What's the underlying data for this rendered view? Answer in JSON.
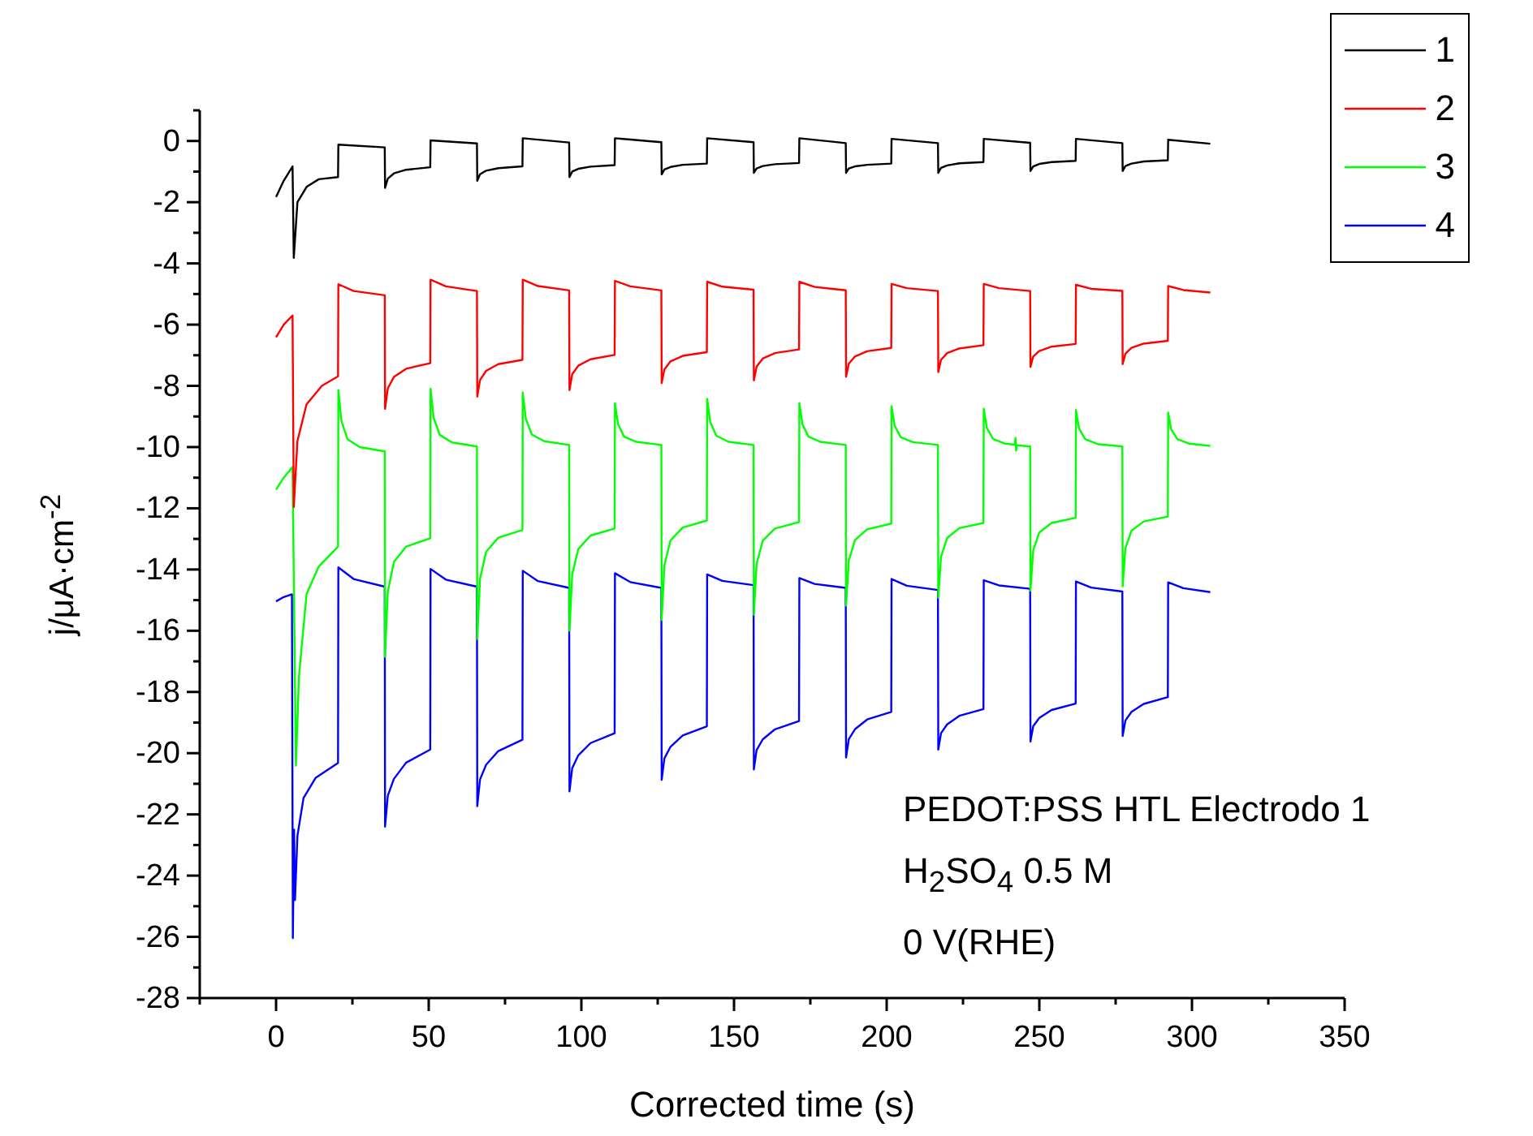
{
  "chart_data": {
    "type": "line",
    "xlabel": "Corrected time (s)",
    "ylabel": "j/μA·cm$^{-2}$",
    "xlim": [
      -25,
      350
    ],
    "ylim": [
      -28,
      1
    ],
    "xticks": [
      {
        "value": -25,
        "label": null
      },
      0,
      {
        "value": 25,
        "label": null
      },
      50,
      {
        "value": 75,
        "label": null
      },
      100,
      {
        "value": 125,
        "label": null
      },
      150,
      {
        "value": 175,
        "label": null
      },
      200,
      {
        "value": 225,
        "label": null
      },
      250,
      {
        "value": 275,
        "label": null
      },
      300,
      {
        "value": 325,
        "label": null
      },
      350
    ],
    "yticks": [
      {
        "value": 1,
        "label": null
      },
      0,
      {
        "value": -1,
        "label": null
      },
      -2,
      {
        "value": -3,
        "label": null
      },
      -4,
      {
        "value": -5,
        "label": null
      },
      -6,
      {
        "value": -7,
        "label": null
      },
      -8,
      {
        "value": -9,
        "label": null
      },
      -10,
      {
        "value": -11,
        "label": null
      },
      -12,
      {
        "value": -13,
        "label": null
      },
      -14,
      {
        "value": -15,
        "label": null
      },
      -16,
      {
        "value": -17,
        "label": null
      },
      -18,
      {
        "value": -19,
        "label": null
      },
      -20,
      {
        "value": -21,
        "label": null
      },
      -22,
      {
        "value": -23,
        "label": null
      },
      -24,
      {
        "value": -25,
        "label": null
      },
      -26,
      {
        "value": -27,
        "label": null
      },
      -28
    ],
    "grid": false,
    "legend": "top right",
    "marker": "none",
    "line_style": "solid",
    "annotations": [
      "PEDOT:PSS HTL Electrodo 1",
      "H$_{2}$SO$_{4}$ 0.5 M",
      "0 V(RHE)"
    ],
    "series": [
      {
        "name": "1",
        "color": "#000000",
        "x": [
          0,
          2.5,
          5.4,
          5.8,
          7,
          10,
          14,
          20.3,
          20.4,
          35.6,
          35.7,
          36.6,
          38.6,
          42.6,
          50.5,
          50.6,
          65.8,
          65.9,
          66.8,
          68.8,
          72.8,
          80.7,
          80.8,
          96.0,
          96.1,
          97,
          99,
          103,
          110.9,
          111.0,
          126.2,
          126.3,
          127.2,
          129.2,
          133.2,
          141.1,
          141.2,
          156.4,
          156.5,
          157.4,
          159.4,
          163.4,
          171.3,
          171.4,
          186.6,
          186.7,
          187.6,
          189.6,
          193.6,
          201.5,
          201.6,
          216.8,
          216.9,
          217.8,
          219.8,
          223.8,
          231.7,
          231.8,
          247.0,
          247.1,
          248,
          250,
          254,
          261.9,
          262.0,
          277.2,
          277.3,
          278.2,
          280.2,
          284.2,
          292.1,
          292.2,
          306
        ],
        "values": [
          -1.83,
          -1.3,
          -0.83,
          -3.82,
          -2.0,
          -1.5,
          -1.25,
          -1.18,
          -0.12,
          -0.21,
          -1.53,
          -1.23,
          -1.06,
          -0.94,
          -0.86,
          0.02,
          -0.08,
          -1.3,
          -1.09,
          -0.97,
          -0.89,
          -0.83,
          0.09,
          -0.05,
          -1.18,
          -1.0,
          -0.91,
          -0.84,
          -0.79,
          0.09,
          -0.04,
          -1.09,
          -0.93,
          -0.85,
          -0.78,
          -0.74,
          0.09,
          -0.04,
          -1.04,
          -0.9,
          -0.82,
          -0.76,
          -0.72,
          0.09,
          -0.07,
          -1.04,
          -0.9,
          -0.83,
          -0.78,
          -0.74,
          0.07,
          -0.07,
          -1.04,
          -0.88,
          -0.8,
          -0.73,
          -0.69,
          0.07,
          -0.06,
          -0.98,
          -0.83,
          -0.75,
          -0.69,
          -0.65,
          0.07,
          -0.07,
          -0.98,
          -0.82,
          -0.74,
          -0.67,
          -0.63,
          0.04,
          -0.09
        ]
      },
      {
        "name": "2",
        "color": "#ff0000",
        "x": [
          0,
          2.5,
          5.4,
          5.8,
          7,
          10,
          15,
          20.3,
          20.4,
          25.4,
          35.6,
          35.7,
          36.6,
          38.6,
          42.6,
          50.5,
          50.6,
          55.6,
          65.8,
          65.9,
          66.8,
          68.8,
          72.8,
          80.7,
          80.8,
          85.8,
          96.0,
          96.1,
          97,
          99,
          103,
          110.9,
          111.0,
          116,
          126.2,
          126.3,
          127.2,
          129.2,
          133.2,
          141.1,
          141.2,
          146.2,
          156.4,
          156.5,
          157.4,
          159.4,
          163.4,
          171.3,
          171.4,
          176.4,
          186.6,
          186.7,
          187.6,
          189.6,
          193.6,
          201.5,
          201.6,
          206.6,
          216.8,
          216.9,
          217.8,
          219.8,
          223.8,
          231.7,
          231.8,
          236.8,
          247.0,
          247.1,
          248,
          250,
          254,
          261.9,
          262.0,
          267,
          277.2,
          277.3,
          278.2,
          280.2,
          284.2,
          292.1,
          292.2,
          297.2,
          306
        ],
        "values": [
          -6.41,
          -6.0,
          -5.7,
          -11.96,
          -9.8,
          -8.6,
          -8.0,
          -7.69,
          -4.68,
          -4.9,
          -5.04,
          -8.75,
          -8.08,
          -7.71,
          -7.44,
          -7.26,
          -4.53,
          -4.75,
          -4.9,
          -8.35,
          -7.81,
          -7.51,
          -7.29,
          -7.15,
          -4.53,
          -4.74,
          -4.88,
          -8.14,
          -7.62,
          -7.34,
          -7.13,
          -6.99,
          -4.57,
          -4.75,
          -4.88,
          -7.91,
          -7.46,
          -7.2,
          -7.02,
          -6.9,
          -4.6,
          -4.76,
          -4.86,
          -7.82,
          -7.37,
          -7.11,
          -6.93,
          -6.81,
          -4.6,
          -4.77,
          -4.88,
          -7.7,
          -7.28,
          -7.04,
          -6.87,
          -6.76,
          -4.67,
          -4.81,
          -4.9,
          -7.55,
          -7.15,
          -6.93,
          -6.78,
          -6.67,
          -4.67,
          -4.81,
          -4.9,
          -7.38,
          -7.04,
          -6.86,
          -6.72,
          -6.63,
          -4.7,
          -4.83,
          -4.9,
          -7.29,
          -6.95,
          -6.76,
          -6.62,
          -6.53,
          -4.74,
          -4.87,
          -4.95
        ]
      },
      {
        "name": "3",
        "color": "#00ff00",
        "x": [
          0,
          2.5,
          5.4,
          6.5,
          7.5,
          8.5,
          10,
          14,
          20.3,
          20.4,
          21.4,
          23.4,
          27.4,
          35.6,
          35.7,
          36.6,
          38.6,
          42.6,
          50.5,
          50.6,
          51.6,
          53.6,
          57.6,
          65.8,
          65.9,
          66.8,
          68.8,
          72.8,
          80.7,
          80.8,
          81.8,
          83.8,
          87.8,
          96.0,
          96.1,
          97,
          99,
          103,
          110.9,
          111.0,
          112,
          114,
          118,
          126.2,
          126.3,
          127.2,
          129.2,
          133.2,
          141.1,
          141.2,
          142.2,
          144.2,
          148.2,
          156.4,
          156.5,
          157.4,
          159.4,
          163.4,
          171.3,
          171.4,
          172.4,
          174.4,
          178.4,
          186.6,
          186.7,
          187.6,
          189.6,
          193.6,
          201.5,
          201.6,
          202.6,
          204.6,
          208.6,
          216.8,
          216.9,
          217.8,
          219.8,
          223.8,
          231.7,
          231.8,
          232.8,
          234.8,
          238.8,
          242,
          242.2,
          242.4,
          242.6,
          247.0,
          247.1,
          248,
          250,
          254,
          261.9,
          262.0,
          263,
          265,
          269,
          277.2,
          277.3,
          278.2,
          280.2,
          284.2,
          292.1,
          292.2,
          293.2,
          295.2,
          299.2,
          306
        ],
        "values": [
          -11.39,
          -11.0,
          -10.65,
          -20.41,
          -17.5,
          -16.4,
          -14.8,
          -13.9,
          -13.25,
          -8.14,
          -9.14,
          -9.74,
          -10.0,
          -10.14,
          -16.85,
          -14.72,
          -13.75,
          -13.25,
          -12.98,
          -8.09,
          -9.04,
          -9.6,
          -9.85,
          -9.98,
          -16.27,
          -14.31,
          -13.42,
          -12.96,
          -12.71,
          -8.22,
          -9.08,
          -9.59,
          -9.81,
          -9.93,
          -16.0,
          -14.16,
          -13.33,
          -12.89,
          -12.66,
          -8.57,
          -9.25,
          -9.66,
          -9.83,
          -9.93,
          -15.65,
          -13.86,
          -13.05,
          -12.63,
          -12.4,
          -8.43,
          -9.18,
          -9.63,
          -9.83,
          -9.93,
          -15.48,
          -13.81,
          -13.06,
          -12.66,
          -12.45,
          -8.56,
          -9.25,
          -9.66,
          -9.83,
          -9.93,
          -15.18,
          -13.71,
          -13.04,
          -12.69,
          -12.5,
          -8.66,
          -9.3,
          -9.68,
          -9.84,
          -9.93,
          -14.92,
          -13.58,
          -12.97,
          -12.65,
          -12.48,
          -8.75,
          -9.37,
          -9.73,
          -9.89,
          -9.92,
          -9.7,
          -10.12,
          -9.94,
          -9.98,
          -14.69,
          -13.38,
          -12.79,
          -12.48,
          -12.31,
          -8.79,
          -9.39,
          -9.74,
          -9.9,
          -9.98,
          -14.55,
          -13.3,
          -12.73,
          -12.43,
          -12.27,
          -8.87,
          -9.42,
          -9.74,
          -9.89,
          -9.96
        ]
      },
      {
        "name": "4",
        "color": "#0000ff",
        "x": [
          0,
          2.5,
          5.2,
          5.5,
          5.9,
          6.2,
          7,
          9,
          13,
          20.3,
          20.4,
          25.4,
          35.6,
          35.7,
          36.6,
          38.6,
          42.6,
          50.5,
          50.6,
          55.6,
          65.8,
          65.9,
          66.8,
          68.8,
          72.8,
          80.7,
          80.8,
          85.8,
          96.0,
          96.1,
          97,
          99,
          103,
          110.9,
          111.0,
          116,
          126.2,
          126.3,
          127.2,
          129.2,
          133.2,
          141.1,
          141.2,
          146.2,
          156.4,
          156.5,
          157.4,
          159.4,
          163.4,
          171.3,
          171.4,
          176.4,
          186.6,
          186.7,
          187.6,
          189.6,
          193.6,
          201.5,
          201.6,
          206.6,
          216.8,
          216.9,
          217.8,
          219.8,
          223.8,
          231.7,
          231.8,
          236.8,
          247.0,
          247.1,
          248,
          250,
          254,
          261.9,
          262.0,
          267,
          277.2,
          277.3,
          278.2,
          280.2,
          284.2,
          292.1,
          292.2,
          297.2,
          306
        ],
        "values": [
          -15.04,
          -14.9,
          -14.81,
          -26.04,
          -22.5,
          -24.8,
          -22.7,
          -21.46,
          -20.8,
          -20.32,
          -13.93,
          -14.31,
          -14.56,
          -22.4,
          -21.39,
          -20.84,
          -20.31,
          -19.88,
          -13.98,
          -14.33,
          -14.56,
          -21.73,
          -20.86,
          -20.38,
          -19.93,
          -19.56,
          -14.04,
          -14.38,
          -14.6,
          -21.25,
          -20.49,
          -20.07,
          -19.67,
          -19.35,
          -14.12,
          -14.41,
          -14.6,
          -20.87,
          -20.17,
          -19.79,
          -19.42,
          -19.12,
          -14.16,
          -14.37,
          -14.51,
          -20.53,
          -19.9,
          -19.55,
          -19.22,
          -18.95,
          -14.28,
          -14.47,
          -14.6,
          -20.14,
          -19.54,
          -19.22,
          -18.9,
          -18.65,
          -14.31,
          -14.53,
          -14.67,
          -19.88,
          -19.35,
          -19.06,
          -18.78,
          -18.56,
          -14.35,
          -14.52,
          -14.63,
          -19.62,
          -19.12,
          -18.85,
          -18.59,
          -18.38,
          -14.39,
          -14.59,
          -14.72,
          -19.44,
          -18.93,
          -18.65,
          -18.39,
          -18.17,
          -14.42,
          -14.61,
          -14.74
        ]
      }
    ]
  }
}
